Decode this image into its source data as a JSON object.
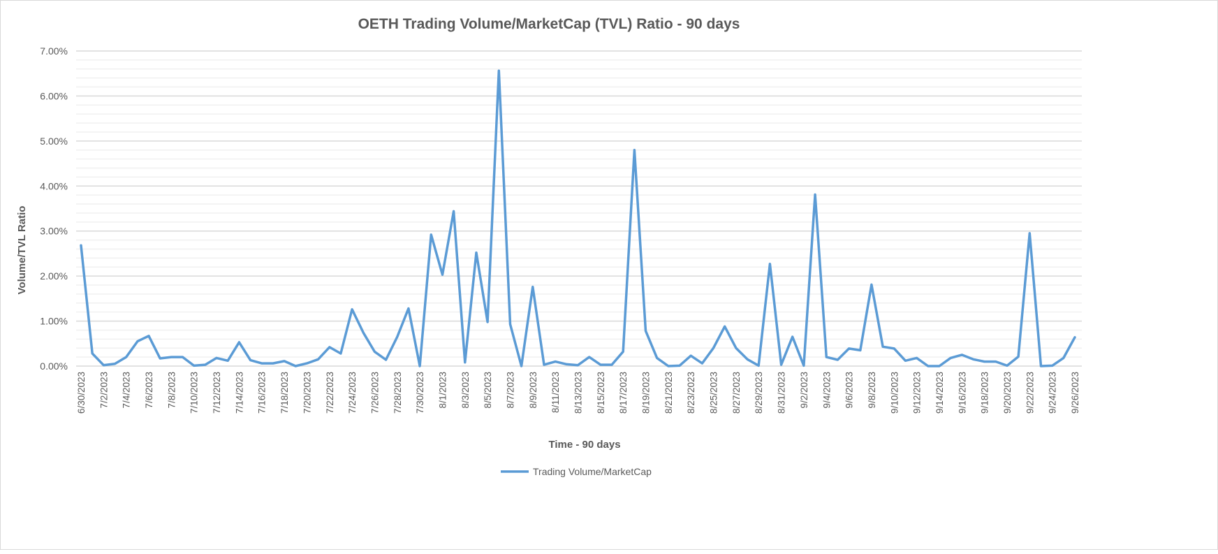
{
  "chart_data": {
    "type": "line",
    "title": "OETH Trading Volume/MarketCap (TVL) Ratio - 90 days",
    "xlabel": "Time - 90 days",
    "ylabel": "Volume/TVL Ratio",
    "ylim": [
      0,
      7
    ],
    "y_ticks": [
      "0.00%",
      "1.00%",
      "2.00%",
      "3.00%",
      "4.00%",
      "5.00%",
      "6.00%",
      "7.00%"
    ],
    "y_minor_step": 0.2,
    "grid": true,
    "legend_position": "bottom",
    "line_color": "#5B9BD5",
    "x": [
      "6/30/2023",
      "7/1/2023",
      "7/2/2023",
      "7/3/2023",
      "7/4/2023",
      "7/5/2023",
      "7/6/2023",
      "7/7/2023",
      "7/8/2023",
      "7/9/2023",
      "7/10/2023",
      "7/11/2023",
      "7/12/2023",
      "7/13/2023",
      "7/14/2023",
      "7/15/2023",
      "7/16/2023",
      "7/17/2023",
      "7/18/2023",
      "7/19/2023",
      "7/20/2023",
      "7/21/2023",
      "7/22/2023",
      "7/23/2023",
      "7/24/2023",
      "7/25/2023",
      "7/26/2023",
      "7/27/2023",
      "7/28/2023",
      "7/29/2023",
      "7/30/2023",
      "7/31/2023",
      "8/1/2023",
      "8/2/2023",
      "8/3/2023",
      "8/4/2023",
      "8/5/2023",
      "8/6/2023",
      "8/7/2023",
      "8/8/2023",
      "8/9/2023",
      "8/10/2023",
      "8/11/2023",
      "8/12/2023",
      "8/13/2023",
      "8/14/2023",
      "8/15/2023",
      "8/16/2023",
      "8/17/2023",
      "8/18/2023",
      "8/19/2023",
      "8/20/2023",
      "8/21/2023",
      "8/22/2023",
      "8/23/2023",
      "8/24/2023",
      "8/25/2023",
      "8/26/2023",
      "8/27/2023",
      "8/28/2023",
      "8/29/2023",
      "8/30/2023",
      "8/31/2023",
      "9/1/2023",
      "9/2/2023",
      "9/3/2023",
      "9/4/2023",
      "9/5/2023",
      "9/6/2023",
      "9/7/2023",
      "9/8/2023",
      "9/9/2023",
      "9/10/2023",
      "9/11/2023",
      "9/12/2023",
      "9/13/2023",
      "9/14/2023",
      "9/15/2023",
      "9/16/2023",
      "9/17/2023",
      "9/18/2023",
      "9/19/2023",
      "9/20/2023",
      "9/21/2023",
      "9/22/2023",
      "9/23/2023",
      "9/24/2023",
      "9/25/2023",
      "9/26/2023"
    ],
    "series": [
      {
        "name": "Trading Volume/MarketCap",
        "values": [
          2.68,
          0.28,
          0.02,
          0.05,
          0.2,
          0.55,
          0.67,
          0.17,
          0.2,
          0.2,
          0.01,
          0.03,
          0.18,
          0.12,
          0.53,
          0.13,
          0.06,
          0.06,
          0.11,
          0.0,
          0.06,
          0.15,
          0.42,
          0.28,
          1.26,
          0.74,
          0.32,
          0.14,
          0.65,
          1.28,
          0.0,
          2.92,
          2.03,
          3.44,
          0.08,
          2.52,
          0.98,
          6.56,
          0.93,
          0.0,
          1.76,
          0.03,
          0.1,
          0.04,
          0.02,
          0.2,
          0.03,
          0.03,
          0.32,
          4.8,
          0.78,
          0.18,
          0.0,
          0.01,
          0.23,
          0.06,
          0.4,
          0.88,
          0.4,
          0.15,
          0.01,
          2.27,
          0.03,
          0.65,
          0.01,
          3.81,
          0.2,
          0.14,
          0.39,
          0.35,
          1.81,
          0.43,
          0.39,
          0.12,
          0.18,
          0.0,
          0.0,
          0.18,
          0.25,
          0.15,
          0.1,
          0.1,
          0.01,
          0.21,
          2.95,
          0.0,
          0.01,
          0.18,
          0.64
        ]
      }
    ]
  }
}
